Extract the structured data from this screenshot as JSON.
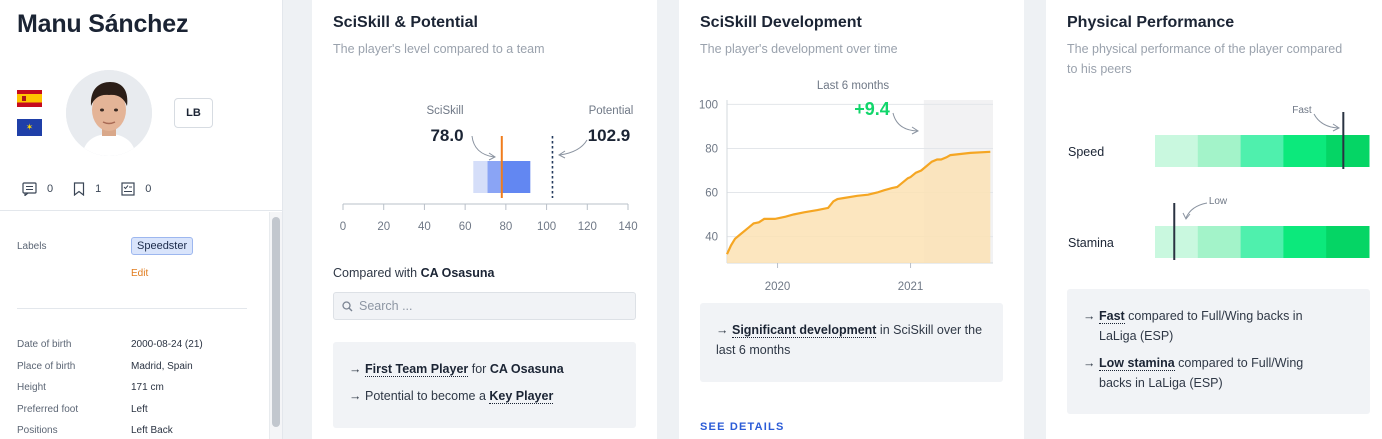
{
  "player": {
    "name": "Manu Sánchez",
    "position": "LB",
    "flags": [
      "spain-flag-icon",
      "eu-flag-icon"
    ],
    "counters": [
      {
        "icon": "comment-icon",
        "count": "0"
      },
      {
        "icon": "bookmark-icon",
        "count": "1"
      },
      {
        "icon": "report-icon",
        "count": "0"
      }
    ],
    "labels_label": "Labels",
    "labels": [
      "Speedster"
    ],
    "edit_label": "Edit",
    "info": [
      {
        "label": "Date of birth",
        "value": "2000-08-24 (21)"
      },
      {
        "label": "Place of birth",
        "value": "Madrid, Spain"
      },
      {
        "label": "Height",
        "value": "171 cm"
      },
      {
        "label": "Preferred foot",
        "value": "Left"
      },
      {
        "label": "Positions",
        "value": "Left Back"
      }
    ]
  },
  "potential_card": {
    "title": "SciSkill & Potential",
    "subtitle": "The player's level compared to a team",
    "sciskill_label": "SciSkill",
    "sciskill_value": "78.0",
    "potential_label": "Potential",
    "potential_value": "102.9",
    "compared_prefix": "Compared with",
    "compared_team": "CA Osasuna",
    "search_placeholder": "Search ...",
    "notes": [
      {
        "arrow": "→",
        "link": "First Team Player",
        "mid": " for ",
        "bold": "CA Osasuna"
      },
      {
        "arrow": "→",
        "text": "Potential to become a ",
        "link": "Key Player"
      }
    ]
  },
  "development_card": {
    "title": "SciSkill Development",
    "subtitle": "The player's development over time",
    "period_label": "Last 6 months",
    "change_label": "+9.4",
    "notes": [
      {
        "arrow": "→",
        "link": "Significant development",
        "text": " in SciSkill over the last 6 months"
      }
    ],
    "see_details_label": "SEE DETAILS"
  },
  "physical_card": {
    "title": "Physical Performance",
    "subtitle_line1": "The physical performance of the player compared",
    "subtitle_line2": "to his peers",
    "metrics": [
      {
        "name": "Speed",
        "marker_label": "Fast",
        "percentile": 0.88
      },
      {
        "name": "Stamina",
        "marker_label": "Low",
        "percentile": 0.09
      }
    ],
    "band_colors": [
      "#c9f8df",
      "#a3f3c9",
      "#4ff0ad",
      "#0ce97c",
      "#05d565"
    ],
    "notes": [
      {
        "arrow": "→",
        "link": "Fast",
        "text": " compared to Full/Wing backs in",
        "text2": "LaLiga (ESP)"
      },
      {
        "arrow": "→",
        "link": "Low stamina",
        "text": " compared to Full/Wing",
        "text2": "backs in LaLiga (ESP)"
      }
    ]
  },
  "chart_data": [
    {
      "type": "bar",
      "xlim": [
        0,
        140
      ],
      "xticks": [
        0,
        20,
        40,
        60,
        80,
        100,
        120,
        140
      ],
      "sciskill": 78.0,
      "potential": 102.9,
      "team_ranges": [
        [
          64,
          92
        ],
        [
          71,
          85
        ]
      ],
      "colors": {
        "sciskill": "#f07c1c",
        "potential": "#243b5e",
        "outer_range": "#d5def9",
        "inner_range": "#6287f2",
        "outer_range_alt": "#8aa4f5"
      }
    },
    {
      "type": "area",
      "ylim": [
        28,
        102
      ],
      "yticks": [
        40,
        60,
        80,
        100
      ],
      "xticks": [
        "2020",
        "2021"
      ],
      "x": [
        2019.62,
        2019.65,
        2019.68,
        2019.72,
        2019.78,
        2019.82,
        2019.86,
        2019.9,
        2019.94,
        2019.98,
        2020.02,
        2020.06,
        2020.12,
        2020.2,
        2020.3,
        2020.38,
        2020.42,
        2020.45,
        2020.5,
        2020.6,
        2020.68,
        2020.75,
        2020.8,
        2020.86,
        2020.9,
        2020.93,
        2020.98,
        2021.0,
        2021.04,
        2021.08,
        2021.12,
        2021.16,
        2021.2,
        2021.23,
        2021.27,
        2021.3,
        2021.45,
        2021.6
      ],
      "y": [
        32,
        36,
        39,
        41,
        44,
        46,
        46.5,
        48,
        48,
        48,
        48.5,
        49,
        50,
        51,
        52,
        53,
        56,
        57,
        57.5,
        58.5,
        59,
        60,
        61,
        62,
        62.5,
        64,
        66.5,
        67,
        69,
        70,
        72,
        74,
        75,
        75,
        76,
        77,
        78,
        78.5
      ],
      "highlight_from": 2021.1,
      "color": "#f5a623",
      "fill": "#fbe2b4"
    }
  ]
}
